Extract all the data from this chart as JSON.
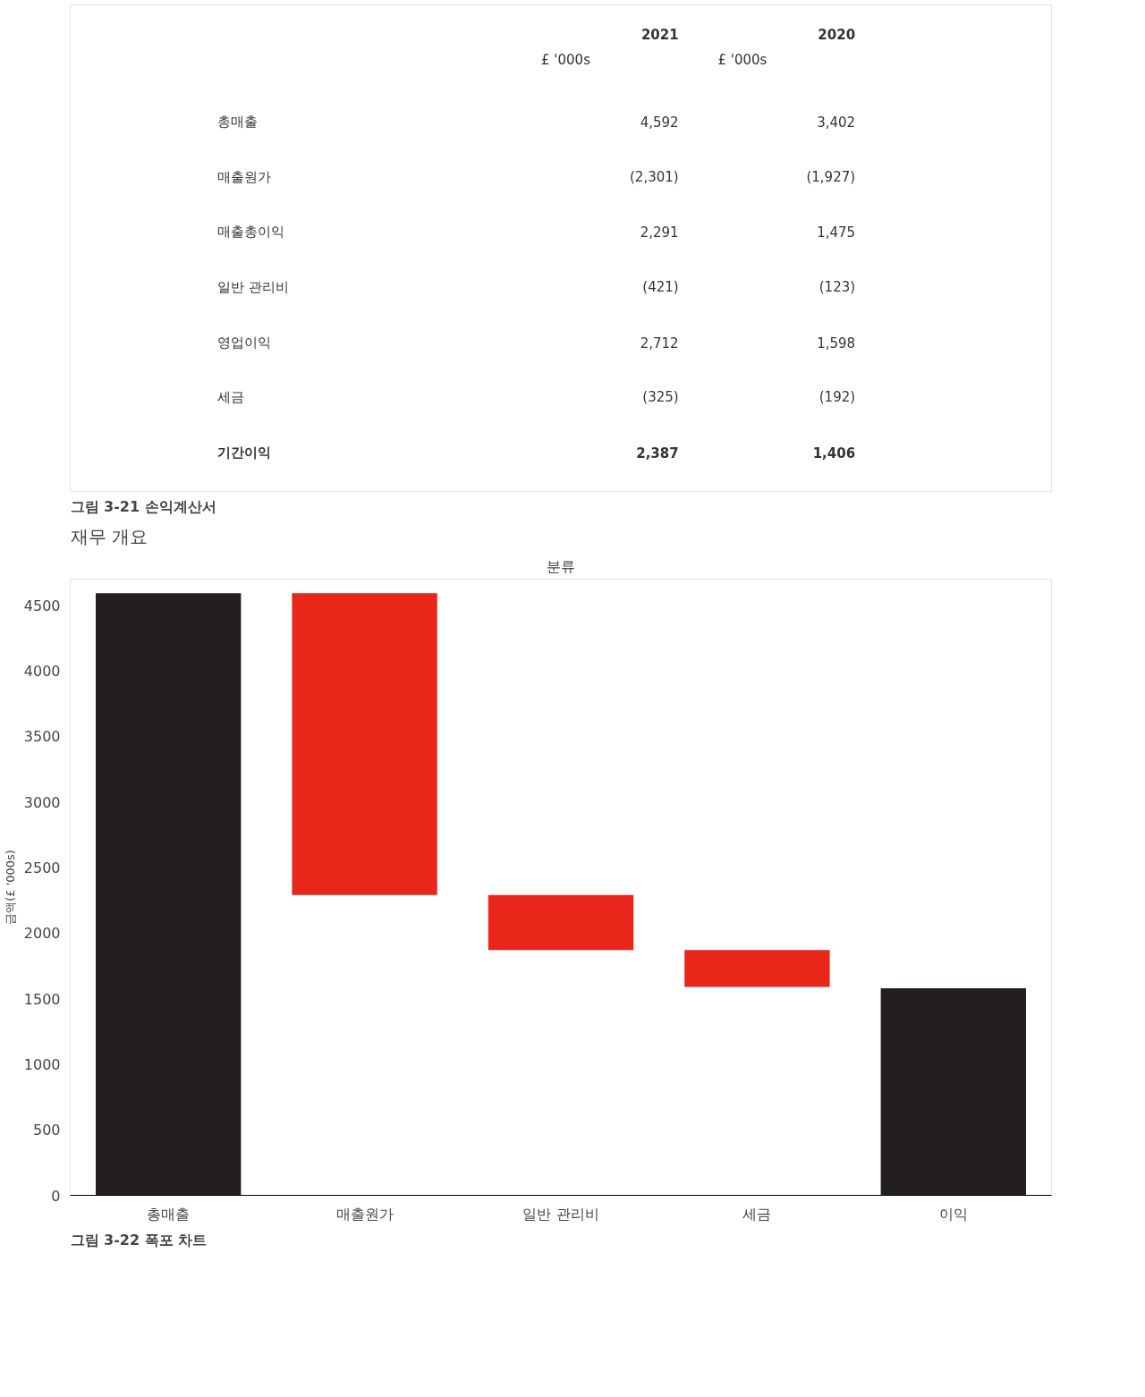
{
  "chart_data": [
    {
      "type": "other",
      "annotations": [
        "2021",
        "2020",
        "£ '000s",
        "£ '000s",
        "총매출",
        "4,592",
        "3,402",
        "매출원가",
        "(2,301)",
        "(1,927)",
        "매출총이익",
        "2,291",
        "1,475",
        "일반 관리비",
        "(421)",
        "(123)",
        "영업이익",
        "2,712",
        "1,598",
        "세금",
        "(325)",
        "(192)",
        "기간이익",
        "2,387",
        "1,406",
        "그림 3-21 손익계산서"
      ]
    },
    {
      "type": "bar",
      "title": "재무 개요",
      "subtitle": "분류",
      "ylabel": "금액(£ '000s)",
      "categories": [
        "총매출",
        "매출원가",
        "일반 관리비",
        "세금",
        "이익"
      ],
      "values": [
        4592,
        2301,
        421,
        280,
        1580
      ],
      "base": [
        0,
        2291,
        1870,
        1590,
        0
      ],
      "colors": [
        "#231f20",
        "#e8261a",
        "#e8261a",
        "#e8261a",
        "#231f20"
      ],
      "ylim": [
        0,
        4700
      ],
      "yticks": [
        0,
        500,
        1000,
        1500,
        2000,
        2500,
        3000,
        3500,
        4000,
        4500
      ],
      "grid": false,
      "annotations": [
        "그림 3-22 폭포 차트"
      ]
    }
  ]
}
